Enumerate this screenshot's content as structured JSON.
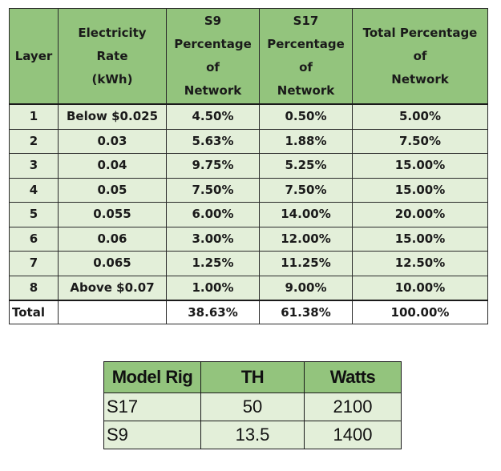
{
  "main_table": {
    "headers": {
      "layer": "Layer",
      "rate": [
        "Electricity",
        "Rate",
        "(kWh)"
      ],
      "s9": [
        "S9",
        "Percentage",
        "of",
        "Network"
      ],
      "s17": [
        "S17",
        "Percentage",
        "of",
        "Network"
      ],
      "total": [
        "Total Percentage",
        "of",
        "Network"
      ]
    },
    "rows": [
      {
        "layer": "1",
        "rate": "Below $0.025",
        "s9": "4.50%",
        "s17": "0.50%",
        "total": "5.00%"
      },
      {
        "layer": "2",
        "rate": "0.03",
        "s9": "5.63%",
        "s17": "1.88%",
        "total": "7.50%"
      },
      {
        "layer": "3",
        "rate": "0.04",
        "s9": "9.75%",
        "s17": "5.25%",
        "total": "15.00%"
      },
      {
        "layer": "4",
        "rate": "0.05",
        "s9": "7.50%",
        "s17": "7.50%",
        "total": "15.00%"
      },
      {
        "layer": "5",
        "rate": "0.055",
        "s9": "6.00%",
        "s17": "14.00%",
        "total": "20.00%"
      },
      {
        "layer": "6",
        "rate": "0.06",
        "s9": "3.00%",
        "s17": "12.00%",
        "total": "15.00%"
      },
      {
        "layer": "7",
        "rate": "0.065",
        "s9": "1.25%",
        "s17": "11.25%",
        "total": "12.50%"
      },
      {
        "layer": "8",
        "rate": "Above $0.07",
        "s9": "1.00%",
        "s17": "9.00%",
        "total": "10.00%"
      }
    ],
    "total_row": {
      "label": "Total",
      "rate": "",
      "s9": "38.63%",
      "s17": "61.38%",
      "total": "100.00%"
    }
  },
  "rig_table": {
    "headers": {
      "model": "Model Rig",
      "th": "TH",
      "watts": "Watts"
    },
    "rows": [
      {
        "model": "S17",
        "th": "50",
        "watts": "2100"
      },
      {
        "model": "S9",
        "th": "13.5",
        "watts": "1400"
      }
    ]
  },
  "colors": {
    "header_green": "#93c47d",
    "cell_light_green": "#e3efd9",
    "border": "#2a2a2a"
  }
}
